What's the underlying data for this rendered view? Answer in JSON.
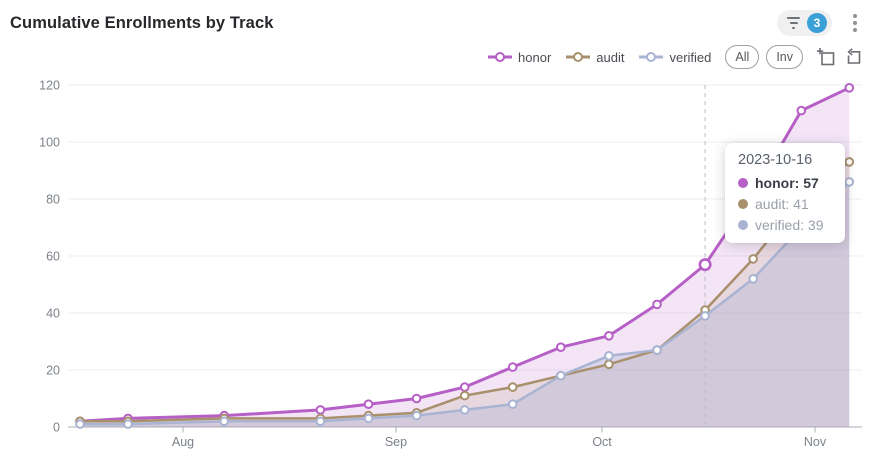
{
  "header": {
    "title": "Cumulative Enrollments by Track",
    "filter_badge_count": "3"
  },
  "legend": {
    "items": [
      {
        "name": "honor",
        "color": "#b65fc6"
      },
      {
        "name": "audit",
        "color": "#a8906c"
      },
      {
        "name": "verified",
        "color": "#a9b3d2"
      }
    ],
    "all_label": "All",
    "inv_label": "Inv"
  },
  "tooltip": {
    "date": "2023-10-16",
    "items": [
      {
        "label": "honor",
        "value": 57,
        "color": "#b65fc6",
        "emphasis": true
      },
      {
        "label": "audit",
        "value": 41,
        "color": "#a8906c",
        "emphasis": false
      },
      {
        "label": "verified",
        "value": 39,
        "color": "#a9b3d2",
        "emphasis": false
      }
    ]
  },
  "chart_data": {
    "type": "line",
    "title": "Cumulative Enrollments by Track",
    "x": [
      "2023-07-17",
      "2023-07-24",
      "2023-08-07",
      "2023-08-21",
      "2023-08-28",
      "2023-09-04",
      "2023-09-11",
      "2023-09-18",
      "2023-09-25",
      "2023-10-02",
      "2023-10-09",
      "2023-10-16",
      "2023-10-23",
      "2023-10-30",
      "2023-11-06"
    ],
    "series": [
      {
        "name": "honor",
        "color": "#b65fc6",
        "fill": "rgba(182,95,198,0.16)",
        "values": [
          2,
          3,
          4,
          6,
          8,
          10,
          14,
          21,
          28,
          32,
          43,
          57,
          82,
          111,
          119
        ]
      },
      {
        "name": "audit",
        "color": "#a8906c",
        "fill": "rgba(168,144,108,0.16)",
        "values": [
          2,
          2,
          3,
          3,
          4,
          5,
          11,
          14,
          18,
          22,
          27,
          41,
          59,
          80,
          93
        ]
      },
      {
        "name": "verified",
        "color": "#a9b3d2",
        "fill": "rgba(169,179,210,0.34)",
        "values": [
          1,
          1,
          2,
          2,
          3,
          4,
          6,
          8,
          18,
          25,
          27,
          39,
          52,
          70,
          86
        ]
      }
    ],
    "ylim": [
      0,
      120
    ],
    "yticks": [
      0,
      20,
      40,
      60,
      80,
      100,
      120
    ],
    "xticks": [
      {
        "label": "Aug",
        "date": "2023-08-01"
      },
      {
        "label": "Sep",
        "date": "2023-09-01"
      },
      {
        "label": "Oct",
        "date": "2023-10-01"
      },
      {
        "label": "Nov",
        "date": "2023-11-01"
      }
    ],
    "highlight": {
      "date": "2023-10-16",
      "series": "honor"
    },
    "legend_position": "top-right",
    "grid": "horizontal-only",
    "marker": "hollow-circle"
  },
  "axis_colors": {
    "grid_line": "#ecedf3",
    "axis_line": "#a9adb5",
    "tick_label": "#7d828a",
    "pointer_line": "#b9bdc6"
  }
}
